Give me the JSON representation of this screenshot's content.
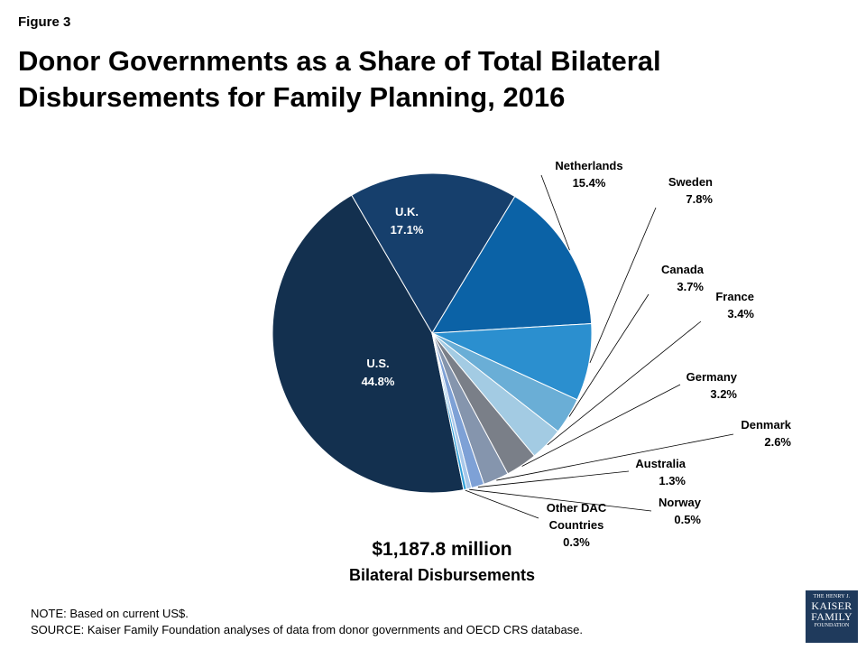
{
  "figure_label": "Figure 3",
  "title_lines": [
    "Donor Governments as a Share of Total Bilateral",
    "Disbursements for Family Planning, 2016"
  ],
  "total": {
    "amount": "$1,187.8 million",
    "label": "Bilateral Disbursements"
  },
  "note": "NOTE: Based on current US$.",
  "source": "SOURCE: Kaiser Family Foundation analyses of data from donor governments and OECD CRS database.",
  "logo": {
    "line1": "THE HENRY J.",
    "line2": "KAISER",
    "line3": "FAMILY",
    "line4": "FOUNDATION"
  },
  "chart_data": {
    "type": "pie",
    "unit": "%",
    "slices": [
      {
        "name": "U.S.",
        "value": 44.8,
        "label": "44.8%",
        "color": "#13304f"
      },
      {
        "name": "U.K.",
        "value": 17.1,
        "label": "17.1%",
        "color": "#163f6c"
      },
      {
        "name": "Netherlands",
        "value": 15.4,
        "label": "15.4%",
        "color": "#0b62a6"
      },
      {
        "name": "Sweden",
        "value": 7.8,
        "label": "7.8%",
        "color": "#2b8fcf"
      },
      {
        "name": "Canada",
        "value": 3.7,
        "label": "3.7%",
        "color": "#6aaed6"
      },
      {
        "name": "France",
        "value": 3.4,
        "label": "3.4%",
        "color": "#a3cbe3"
      },
      {
        "name": "Germany",
        "value": 3.2,
        "label": "3.2%",
        "color": "#7a7f88"
      },
      {
        "name": "Denmark",
        "value": 2.6,
        "label": "2.6%",
        "color": "#8595ad"
      },
      {
        "name": "Australia",
        "value": 1.3,
        "label": "1.3%",
        "color": "#7ea1d6"
      },
      {
        "name": "Norway",
        "value": 0.5,
        "label": "0.5%",
        "color": "#a8c8ea"
      },
      {
        "name": "Other DAC Countries",
        "value": 0.3,
        "label": "0.3%",
        "color": "#2f9fd8"
      }
    ]
  }
}
